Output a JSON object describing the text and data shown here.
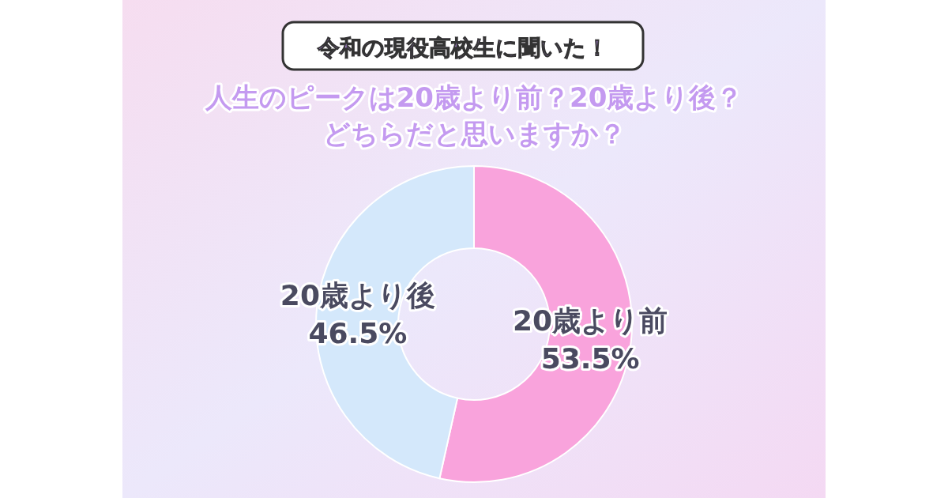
{
  "chart_data": {
    "type": "donut",
    "title": "令和の現役高校生に聞いた！",
    "subtitle": "人生のピークは20歳より前？20歳より後？どちらだと思いますか？",
    "categories": [
      "20歳より前",
      "20歳より後"
    ],
    "values": [
      53.5,
      46.5
    ],
    "colors": [
      "#f9a3dc",
      "#d4e8fb"
    ],
    "value_labels": [
      "53.5%",
      "46.5%"
    ]
  }
}
